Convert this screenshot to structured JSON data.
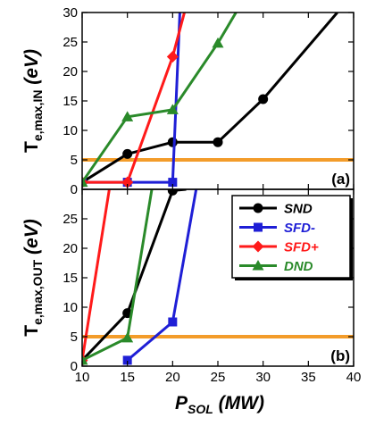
{
  "chart_data": [
    {
      "type": "line",
      "panel": "(a)",
      "ylabel_main": "T",
      "ylabel_sub": "e,max,IN",
      "ylabel_unit": " (eV)",
      "xlim": [
        10,
        40
      ],
      "ylim": [
        0,
        30
      ],
      "yticks": [
        0,
        5,
        10,
        15,
        20,
        25,
        30
      ],
      "reference_line": {
        "y": 5,
        "color": "#f39c2a"
      },
      "series": [
        {
          "name": "SND",
          "color": "#000000",
          "marker": "circle",
          "x": [
            10,
            15,
            20,
            25,
            30,
            38.2
          ],
          "y": [
            1.2,
            6,
            8,
            8,
            15.3,
            30
          ]
        },
        {
          "name": "SFD-",
          "color": "#1f1fd6",
          "marker": "square",
          "x": [
            10,
            15,
            20,
            20.8
          ],
          "y": [
            1.2,
            1.2,
            1.2,
            30
          ]
        },
        {
          "name": "SFD+",
          "color": "#ff1a1a",
          "marker": "diamond",
          "x": [
            10,
            15,
            20,
            21.3
          ],
          "y": [
            1.2,
            1.2,
            22.5,
            30
          ]
        },
        {
          "name": "DND",
          "color": "#2a8a2a",
          "marker": "triangle",
          "x": [
            10,
            15,
            20,
            25,
            27
          ],
          "y": [
            1.2,
            12.3,
            13.5,
            24.8,
            30
          ]
        }
      ]
    },
    {
      "type": "line",
      "panel": "(b)",
      "ylabel_main": "T",
      "ylabel_sub": "e,max,OUT",
      "ylabel_unit": " (eV)",
      "xlabel_main": "P",
      "xlabel_sub": "SOL",
      "xlabel_unit": " (MW)",
      "xlim": [
        10,
        40
      ],
      "ylim": [
        0,
        30
      ],
      "yticks": [
        0,
        5,
        10,
        15,
        20,
        25
      ],
      "xticks": [
        10,
        15,
        20,
        25,
        30,
        35,
        40
      ],
      "reference_line": {
        "y": 5,
        "color": "#f39c2a"
      },
      "series": [
        {
          "name": "SND",
          "color": "#000000",
          "marker": "circle",
          "x": [
            10,
            15,
            20,
            21.5
          ],
          "y": [
            1,
            9,
            29.8,
            30
          ]
        },
        {
          "name": "SFD-",
          "color": "#1f1fd6",
          "marker": "square",
          "x": [
            15,
            20,
            22.6
          ],
          "y": [
            1,
            7.5,
            30
          ]
        },
        {
          "name": "SFD+",
          "color": "#ff1a1a",
          "marker": "diamond",
          "x": [
            10,
            13
          ],
          "y": [
            1,
            30
          ]
        },
        {
          "name": "DND",
          "color": "#2a8a2a",
          "marker": "triangle",
          "x": [
            10,
            15,
            17.7
          ],
          "y": [
            1,
            4.8,
            30
          ]
        }
      ]
    }
  ]
}
